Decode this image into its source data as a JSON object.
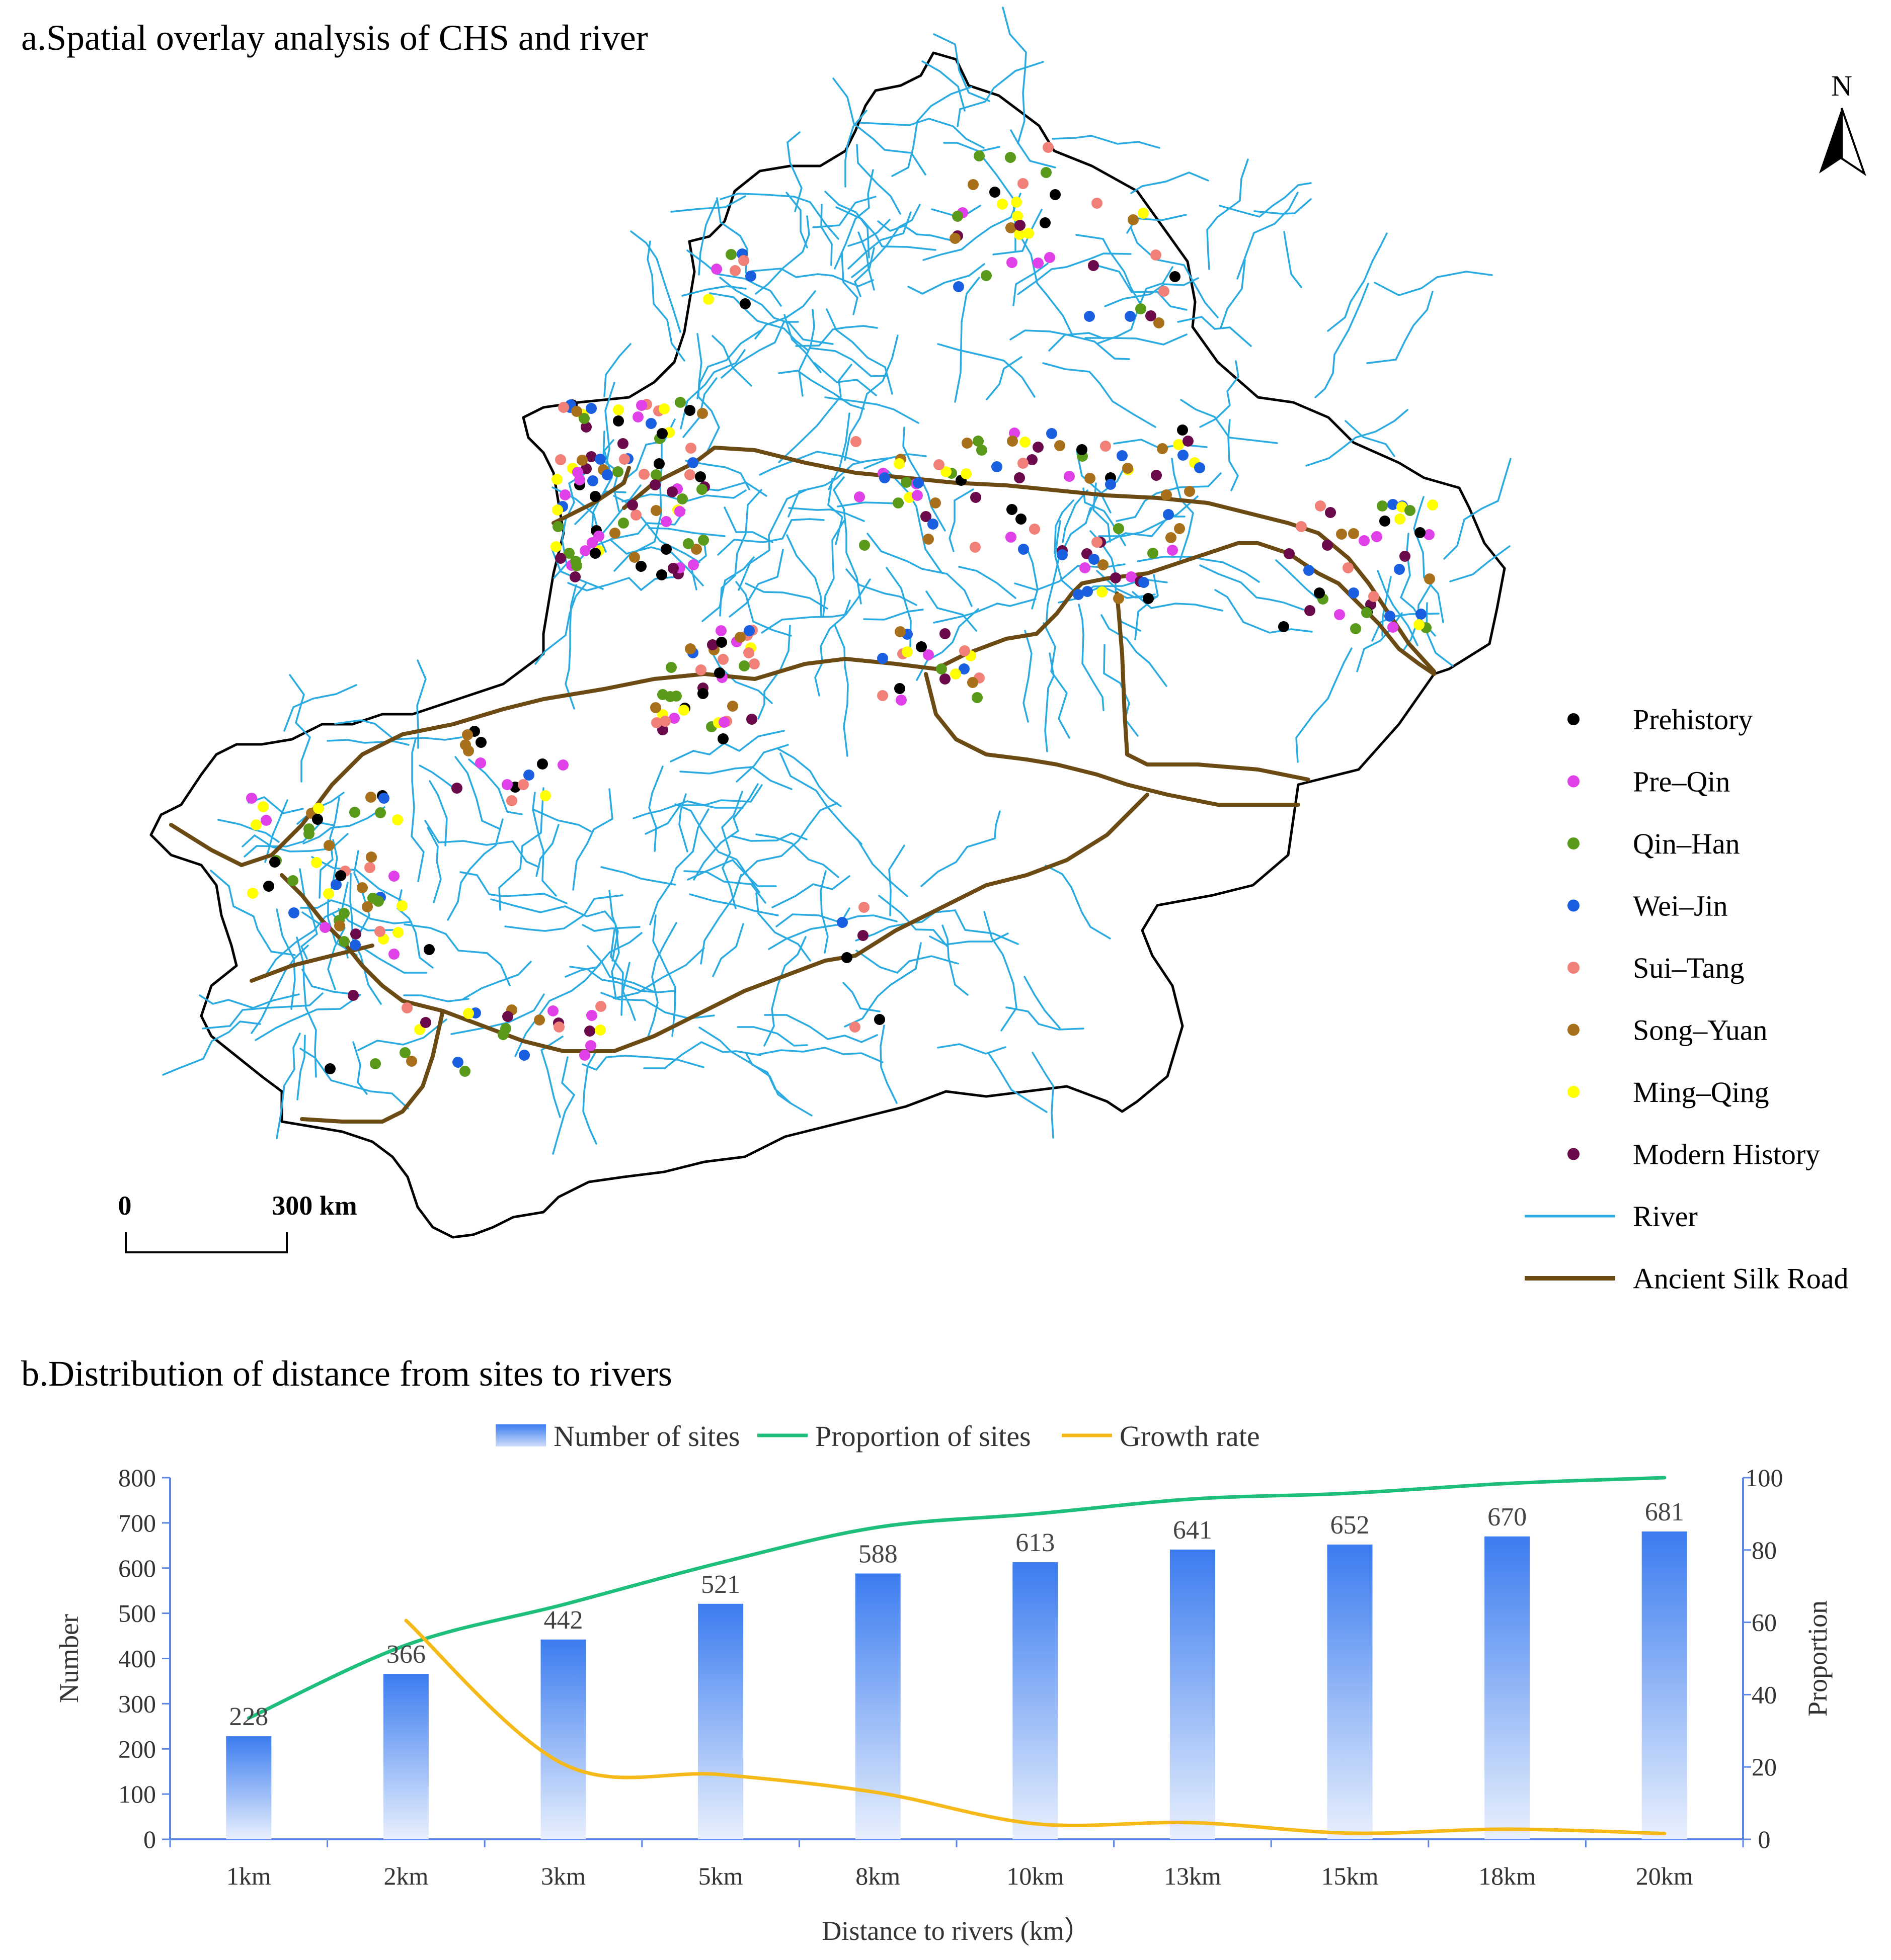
{
  "panel_a": {
    "title": "a.Spatial overlay analysis of CHS and river",
    "north_label": "N",
    "scale_start": "0",
    "scale_end": "300 km",
    "legend": [
      {
        "label": "Prehistory",
        "color": "#000000",
        "kind": "dot"
      },
      {
        "label": "Pre–Qin",
        "color": "#e040e8",
        "kind": "dot"
      },
      {
        "label": "Qin–Han",
        "color": "#5a9a1a",
        "kind": "dot"
      },
      {
        "label": "Wei–Jin",
        "color": "#1a5fe0",
        "kind": "dot"
      },
      {
        "label": "Sui–Tang",
        "color": "#f08078",
        "kind": "dot"
      },
      {
        "label": "Song–Yuan",
        "color": "#a8701a",
        "kind": "dot"
      },
      {
        "label": "Ming–Qing",
        "color": "#ffff00",
        "kind": "dot"
      },
      {
        "label": "Modern History",
        "color": "#6a0a4a",
        "kind": "dot"
      },
      {
        "label": "River",
        "color": "#29abe2",
        "kind": "line"
      },
      {
        "label": "Ancient Silk Road",
        "color": "#6b4a14",
        "kind": "line"
      }
    ]
  },
  "panel_b": {
    "title": "b.Distribution of distance from sites to rivers"
  },
  "chart_data": {
    "type": "bar",
    "categories": [
      "1km",
      "2km",
      "3km",
      "5km",
      "8km",
      "10km",
      "13km",
      "15km",
      "18km",
      "20km"
    ],
    "series": [
      {
        "name": "Number of sites",
        "type": "bar",
        "axis": "left",
        "values": [
          228,
          366,
          442,
          521,
          588,
          613,
          641,
          652,
          670,
          681
        ],
        "color": "#3b7cf0"
      },
      {
        "name": "Proportion of sites",
        "type": "line",
        "axis": "right",
        "values": [
          33.5,
          53.7,
          64.9,
          76.5,
          86.3,
          90.0,
          94.1,
          95.7,
          98.4,
          100.0
        ],
        "color": "#1dbf7a"
      },
      {
        "name": "Growth rate",
        "type": "line",
        "axis": "right",
        "values": [
          null,
          60.5,
          20.8,
          17.9,
          12.9,
          4.3,
          4.6,
          1.7,
          2.8,
          1.6
        ],
        "color": "#f5b91a"
      }
    ],
    "data_labels": [
      "228",
      "366",
      "442",
      "521",
      "588",
      "613",
      "641",
      "652",
      "670",
      "681"
    ],
    "xlabel": "Distance to rivers (km）",
    "ylabel": "Number",
    "y2label": "Proportion",
    "ylim": [
      0,
      800
    ],
    "y2lim": [
      0,
      100
    ],
    "yticks": [
      "0",
      "100",
      "200",
      "300",
      "400",
      "500",
      "600",
      "700",
      "800"
    ],
    "y2ticks": [
      "0",
      "20",
      "40",
      "60",
      "80",
      "100"
    ],
    "grid": false,
    "legend_position": "top-center"
  }
}
